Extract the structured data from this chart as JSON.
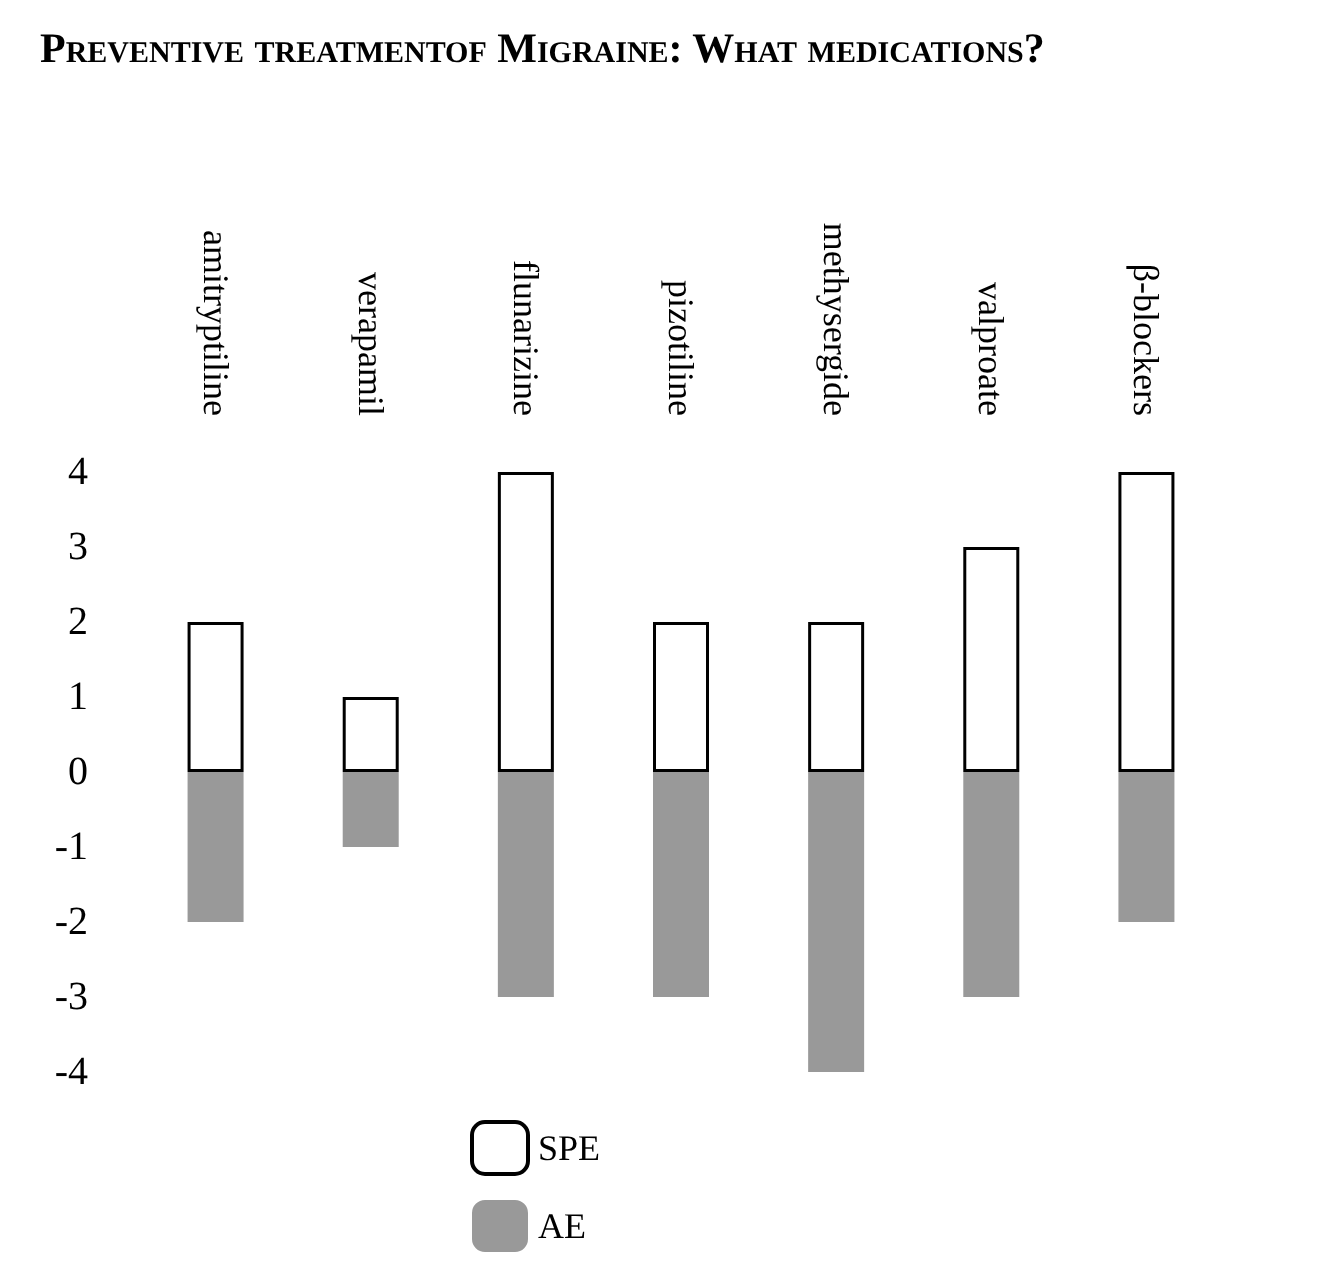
{
  "chart_data": {
    "type": "bar",
    "title": "Preventive treatmentof Migraine: What medications?",
    "categories": [
      "amitryptiline",
      "verapamil",
      "flunarizine",
      "pizotiline",
      "methysergide",
      "valproate",
      "β-blockers"
    ],
    "series": [
      {
        "name": "SPE",
        "color": "#ffffff",
        "values": [
          2,
          1,
          4,
          2,
          2,
          3,
          4
        ]
      },
      {
        "name": "AE",
        "color": "#999999",
        "values": [
          -2,
          -1,
          -3,
          -3,
          -4,
          -3,
          -2
        ]
      }
    ],
    "stacked": true,
    "ylim": [
      -4,
      4
    ],
    "yticks": [
      -4,
      -3,
      -2,
      -1,
      0,
      1,
      2,
      3,
      4
    ],
    "grid": false,
    "legend": "bottom"
  }
}
